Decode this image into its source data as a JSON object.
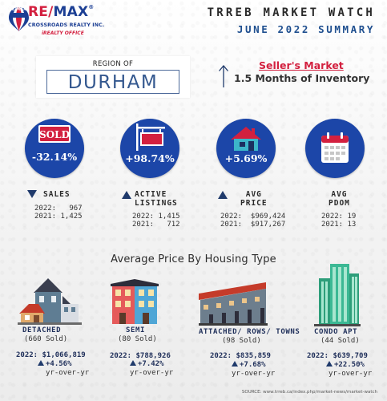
{
  "header": {
    "brand_mini": "RE/MAX",
    "brand_re": "RE/",
    "brand_max": "MAX",
    "brand_reg": "®",
    "brokerage": "CROSSROADS REALTY INC.",
    "brokerage_tag": "iREALTY OFFICE",
    "title": "TRREB MARKET WATCH",
    "subtitle": "JUNE 2022 SUMMARY"
  },
  "region": {
    "region_of": "REGION OF",
    "name": "DURHAM"
  },
  "market": {
    "type": "Seller's Market",
    "inventory": "1.5 Months of Inventory"
  },
  "stats": [
    {
      "value": "-32.14%",
      "label_l1": "SALES",
      "label_l2": "",
      "trend": "down",
      "icon": "sold-sign-icon",
      "rows": "2022:   967\n2021: 1,425"
    },
    {
      "value": "+98.74%",
      "label_l1": "ACTIVE",
      "label_l2": "LISTINGS",
      "trend": "up",
      "icon": "for-sale-sign-icon",
      "rows": "2022: 1,415\n2021:   712"
    },
    {
      "value": "+5.69%",
      "label_l1": "AVG",
      "label_l2": "PRICE",
      "trend": "up",
      "icon": "house-icon",
      "rows": "2022:  $969,424\n2021:  $917,267"
    },
    {
      "value": "",
      "label_l1": "AVG",
      "label_l2": "PDOM",
      "trend": "none",
      "icon": "calendar-icon",
      "rows": "2022: 19\n2021: 13"
    }
  ],
  "section_title": "Average Price By Housing Type",
  "housing": [
    {
      "name": "DETACHED",
      "sold": "(660 Sold)",
      "price": "2022: $1,066,819",
      "change": "+4.56%",
      "yoy": "yr-over-yr"
    },
    {
      "name": "SEMI",
      "sold": "(80 Sold)",
      "price": "2022: $788,926",
      "change": "+7.42%",
      "yoy": "yr-over-yr"
    },
    {
      "name": "ATTACHED/ ROWS/ TOWNS",
      "sold": "(98 Sold)",
      "price": "2022: $835,859",
      "change": "+7.68%",
      "yoy": "yr-over-yr"
    },
    {
      "name": "CONDO APT",
      "sold": "(44 Sold)",
      "price": "2022: $639,709",
      "change": "+22.50%",
      "yoy": "yr-over-yr"
    }
  ],
  "source": "SOURCE:   www.trreb.ca/index.php/market-news/market-watch",
  "colors": {
    "brand_red": "#d3203f",
    "brand_blue": "#1c3f94",
    "circle_blue": "#1c46a8",
    "navy_text": "#1f2f5a"
  }
}
